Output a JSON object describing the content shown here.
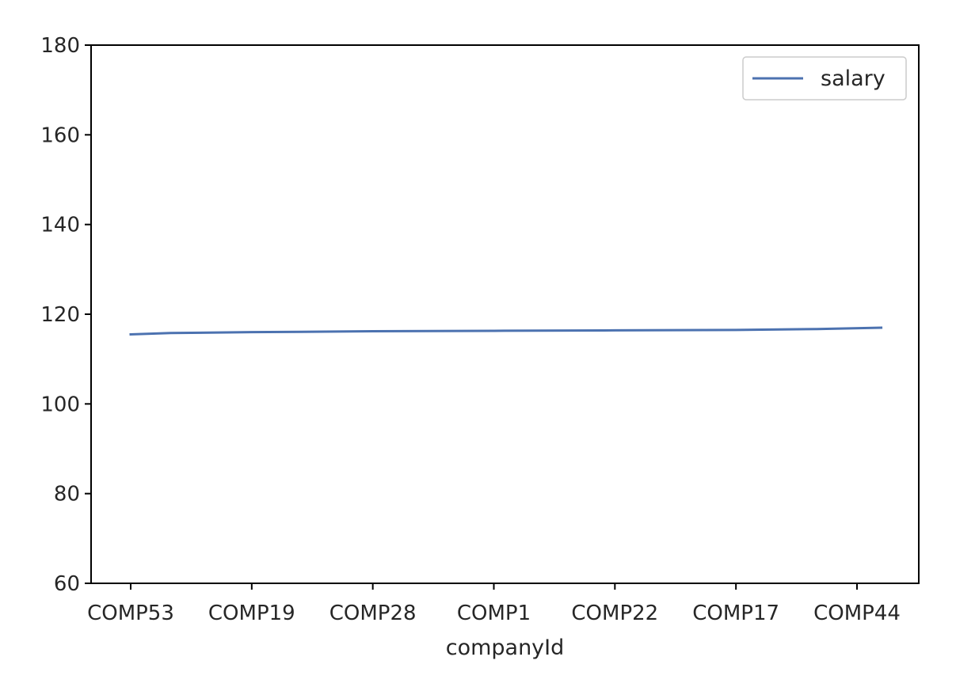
{
  "chart_data": {
    "type": "line",
    "title": "",
    "xlabel": "companyId",
    "ylabel": "",
    "categories": [
      "COMP53",
      "COMP19",
      "COMP28",
      "COMP1",
      "COMP22",
      "COMP17",
      "COMP44"
    ],
    "x_tick_labels": [
      "COMP53",
      "COMP19",
      "COMP28",
      "COMP1",
      "COMP22",
      "COMP17",
      "COMP44"
    ],
    "y_ticks": [
      60,
      80,
      100,
      120,
      140,
      160,
      180
    ],
    "ylim": [
      60,
      180
    ],
    "series": [
      {
        "name": "salary",
        "color": "#4c72b0",
        "points": [
          {
            "x": 0,
            "y": 115.5
          },
          {
            "x": 0.33,
            "y": 115.8
          },
          {
            "x": 1,
            "y": 116.0
          },
          {
            "x": 2,
            "y": 116.2
          },
          {
            "x": 3,
            "y": 116.3
          },
          {
            "x": 4,
            "y": 116.4
          },
          {
            "x": 5,
            "y": 116.5
          },
          {
            "x": 5.67,
            "y": 116.7
          },
          {
            "x": 6.2,
            "y": 117.0
          }
        ]
      }
    ],
    "grid": false,
    "legend_position": "top-right"
  }
}
